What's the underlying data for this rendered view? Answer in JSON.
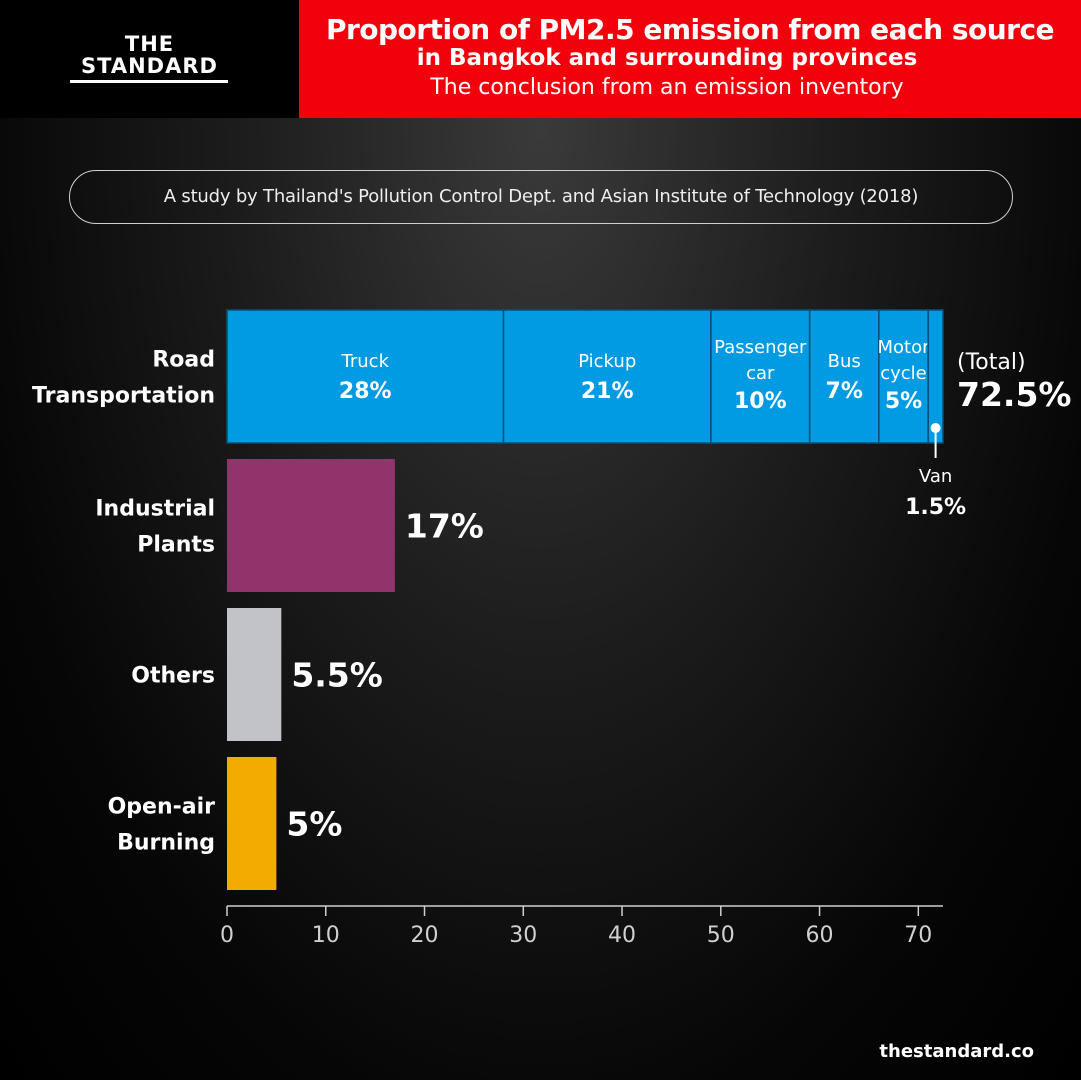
{
  "brand": {
    "line1": "THE",
    "line2": "STANDARD"
  },
  "header": {
    "title": "Proportion of PM2.5 emission from each source",
    "subtitle1": "in Bangkok and surrounding provinces",
    "subtitle2": "The conclusion from an emission inventory"
  },
  "source_note": "A study by Thailand's Pollution Control Dept. and Asian Institute of Technology (2018)",
  "website": "thestandard.co",
  "colors": {
    "header_bg": "#f2000b",
    "road": "#009be2",
    "industrial": "#92346b",
    "others": "#c2c3c8",
    "burning": "#f2ab00"
  },
  "chart_data": {
    "type": "bar",
    "orientation": "horizontal",
    "stacked_first_bar": true,
    "xlim": [
      0,
      72.5
    ],
    "x_ticks": [
      0,
      10,
      20,
      30,
      40,
      50,
      60,
      70
    ],
    "grid": false,
    "categories": [
      {
        "name": [
          "Road",
          "Transportation"
        ],
        "value": 72.5,
        "value_label": "72.5%",
        "total_label": "(Total)",
        "color": "#009be2",
        "segments": [
          {
            "name": [
              "Truck"
            ],
            "value": 28,
            "label": "28%"
          },
          {
            "name": [
              "Pickup"
            ],
            "value": 21,
            "label": "21%"
          },
          {
            "name": [
              "Passenger",
              "car"
            ],
            "value": 10,
            "label": "10%"
          },
          {
            "name": [
              "Bus"
            ],
            "value": 7,
            "label": "7%"
          },
          {
            "name": [
              "Motor",
              "cycle"
            ],
            "value": 5,
            "label": "5%"
          },
          {
            "name": [
              "Van"
            ],
            "value": 1.5,
            "label": "1.5%",
            "callout": true
          }
        ]
      },
      {
        "name": [
          "Industrial",
          "Plants"
        ],
        "value": 17,
        "value_label": "17%",
        "color": "#92346b"
      },
      {
        "name": [
          "Others"
        ],
        "value": 5.5,
        "value_label": "5.5%",
        "color": "#c2c3c8"
      },
      {
        "name": [
          "Open-air",
          "Burning"
        ],
        "value": 5,
        "value_label": "5%",
        "color": "#f2ab00"
      }
    ]
  }
}
